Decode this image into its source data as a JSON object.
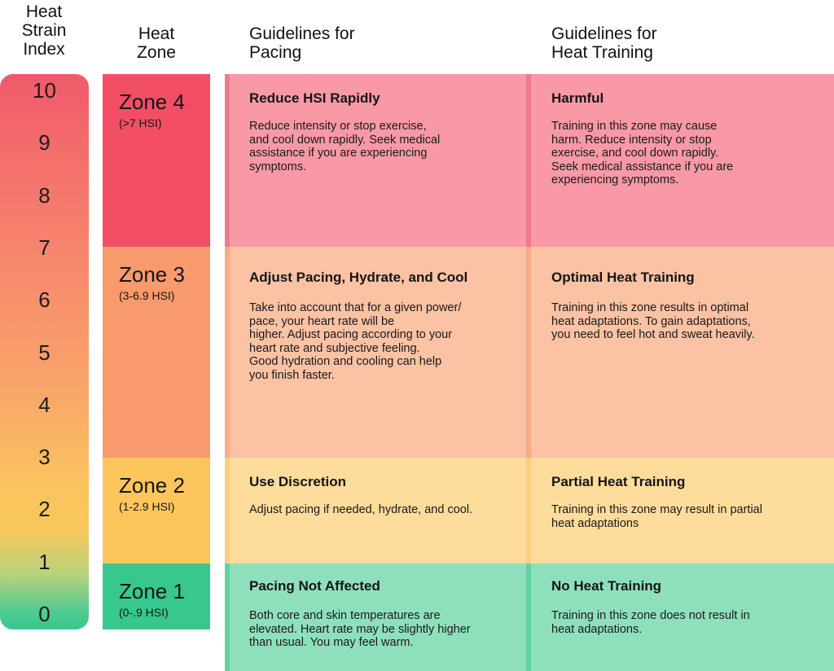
{
  "headers": {
    "index": "Heat\nStrain\nIndex",
    "zone": "Heat\nZone",
    "pacing": "Guidelines for\nPacing",
    "training": "Guidelines for\nHeat Training"
  },
  "index_scale": [
    "10",
    "9",
    "8",
    "7",
    "6",
    "5",
    "4",
    "3",
    "2",
    "1",
    "0"
  ],
  "zones": [
    {
      "name": "Zone 4",
      "range": "(>7 HSI)",
      "color": "#f24f66",
      "band_color": "#f899a5",
      "accent_color": "#f2798b",
      "pacing_title": "Reduce HSI Rapidly",
      "pacing_text": "Reduce intensity or stop exercise,\nand cool down rapidly. Seek medical\nassistance if you are experiencing\nsymptoms.",
      "training_title": "Harmful",
      "training_text": "Training in this zone may cause\nharm. Reduce intensity or stop\nexercise, and cool down rapidly.\nSeek medical assistance if you are\nexperiencing symptoms."
    },
    {
      "name": "Zone 3",
      "range": "(3-6.9 HSI)",
      "color": "#f99a6d",
      "band_color": "#fbc2a4",
      "accent_color": "#f9ab86",
      "pacing_title": "Adjust Pacing, Hydrate, and Cool",
      "pacing_text": "Take into account that for a given power/\npace, your heart rate will be\nhigher. Adjust pacing according to your\nheart rate and subjective feeling.\nGood hydration and cooling can help\nyou finish faster.",
      "training_title": "Optimal Heat Training",
      "training_text": "Training in this zone results in optimal\nheat adaptations. To gain adaptations,\nyou need to feel hot and sweat heavily."
    },
    {
      "name": "Zone 2",
      "range": "(1-2.9 HSI)",
      "color": "#fcc65c",
      "band_color": "#fddc9c",
      "accent_color": "#fbd07c",
      "pacing_title": "Use Discretion",
      "pacing_text": "Adjust pacing if needed, hydrate, and cool.",
      "training_title": "Partial Heat Training",
      "training_text": "Training in this zone may result in partial\nheat adaptations"
    },
    {
      "name": "Zone 1",
      "range": "(0-.9 HSI)",
      "color": "#38c78e",
      "band_color": "#8ee0bd",
      "accent_color": "#5fd3a4",
      "pacing_title": "Pacing Not Affected",
      "pacing_text": "Both core and skin temperatures are\nelevated. Heart rate may be slightly higher\nthan usual. You may feel warm.",
      "training_title": "No Heat Training",
      "training_text": "Training in this zone does not result in\nheat adaptations."
    }
  ]
}
